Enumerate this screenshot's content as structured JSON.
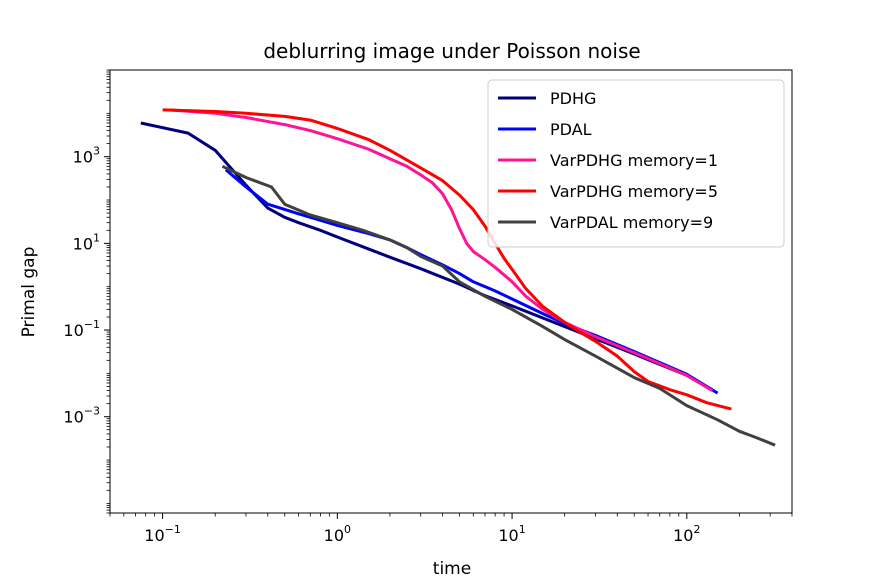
{
  "chart_data": {
    "type": "line",
    "title": "deblurring image under Poisson noise",
    "xlabel": "time",
    "ylabel": "Primal gap",
    "xscale": "log",
    "yscale": "log",
    "xlim": [
      0.05,
      400
    ],
    "ylim": [
      6e-06,
      100000
    ],
    "xticks": [
      {
        "value": 0.1,
        "base": "10",
        "exp": "−1"
      },
      {
        "value": 1,
        "base": "10",
        "exp": "0"
      },
      {
        "value": 10,
        "base": "10",
        "exp": "1"
      },
      {
        "value": 100,
        "base": "10",
        "exp": "2"
      }
    ],
    "yticks": [
      {
        "value": 0.001,
        "base": "10",
        "exp": "−3"
      },
      {
        "value": 0.1,
        "base": "10",
        "exp": "−1"
      },
      {
        "value": 10,
        "base": "10",
        "exp": "1"
      },
      {
        "value": 1000,
        "base": "10",
        "exp": "3"
      }
    ],
    "legend_position": "top-right",
    "series": [
      {
        "name": "PDHG",
        "color": "#00007f",
        "x": [
          0.075,
          0.14,
          0.2,
          0.3,
          0.4,
          0.5,
          0.6,
          0.8,
          1.0,
          1.5,
          2,
          3,
          5,
          7,
          10,
          20,
          50,
          100,
          140
        ],
        "y": [
          6000,
          3500,
          1400,
          220,
          65,
          40,
          30,
          20,
          14,
          7.5,
          4.8,
          2.6,
          1.15,
          0.62,
          0.36,
          0.12,
          0.028,
          0.009,
          0.0042
        ]
      },
      {
        "name": "PDAL",
        "color": "#0000ff",
        "x": [
          0.23,
          0.3,
          0.4,
          0.6,
          0.8,
          1.0,
          1.5,
          2.0,
          2.5,
          3,
          4,
          5,
          6,
          8,
          10,
          15,
          20,
          30,
          50,
          100,
          150
        ],
        "y": [
          500,
          200,
          80,
          48,
          34,
          26,
          17,
          12,
          8,
          5.5,
          3.2,
          2.0,
          1.3,
          0.8,
          0.52,
          0.24,
          0.14,
          0.075,
          0.032,
          0.0095,
          0.0035
        ]
      },
      {
        "name": "VarPDHG memory=1",
        "color": "#ff1493",
        "x": [
          0.11,
          0.2,
          0.3,
          0.5,
          0.7,
          1.0,
          1.5,
          2.0,
          2.5,
          3.0,
          3.5,
          4.0,
          4.5,
          5.0,
          5.5,
          6.0,
          7.0,
          8,
          10,
          12,
          15,
          20,
          30,
          50,
          100,
          140
        ],
        "y": [
          12000,
          10000,
          8000,
          5500,
          4000,
          2600,
          1500,
          900,
          600,
          380,
          250,
          140,
          60,
          22,
          10,
          6.5,
          4.2,
          2.8,
          1.3,
          0.6,
          0.3,
          0.15,
          0.07,
          0.03,
          0.009,
          0.004
        ]
      },
      {
        "name": "VarPDHG memory=5",
        "color": "#ff0000",
        "x": [
          0.1,
          0.2,
          0.3,
          0.5,
          0.7,
          1.0,
          1.5,
          2.0,
          3.0,
          4.0,
          5.0,
          6.0,
          7.0,
          8,
          9,
          10,
          12,
          15,
          20,
          25,
          30,
          40,
          50,
          60,
          80,
          100,
          130,
          180
        ],
        "y": [
          12000,
          11000,
          10000,
          8500,
          7000,
          4500,
          2500,
          1400,
          550,
          280,
          130,
          60,
          25,
          10,
          4.5,
          2.5,
          0.9,
          0.35,
          0.15,
          0.085,
          0.055,
          0.025,
          0.011,
          0.0065,
          0.0042,
          0.0032,
          0.0021,
          0.0015
        ]
      },
      {
        "name": "VarPDAL memory=9",
        "color": "#404040",
        "x": [
          0.22,
          0.3,
          0.42,
          0.5,
          0.7,
          1.0,
          1.4,
          2.0,
          2.5,
          3.0,
          4.0,
          5.0,
          7.0,
          10,
          15,
          20,
          30,
          50,
          70,
          100,
          150,
          200,
          250,
          320
        ],
        "y": [
          600,
          330,
          200,
          80,
          45,
          30,
          20,
          12,
          8,
          5,
          3,
          1.3,
          0.6,
          0.3,
          0.12,
          0.06,
          0.025,
          0.008,
          0.0045,
          0.0018,
          0.00085,
          0.00046,
          0.00033,
          0.00022
        ]
      }
    ]
  }
}
